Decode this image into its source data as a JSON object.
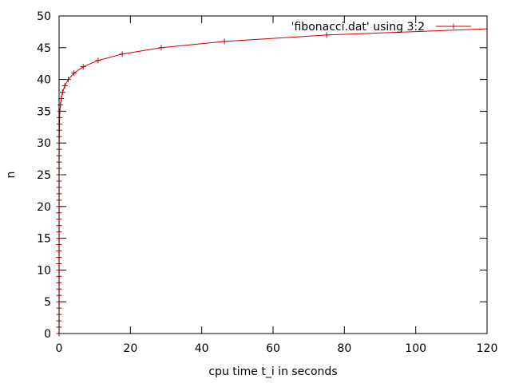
{
  "chart_data": {
    "type": "line",
    "title": "",
    "xlabel": "cpu time t_i in seconds",
    "ylabel": "n",
    "xlim": [
      0,
      120
    ],
    "ylim": [
      0,
      50
    ],
    "xticks": [
      0,
      20,
      40,
      60,
      80,
      100,
      120
    ],
    "yticks": [
      0,
      5,
      10,
      15,
      20,
      25,
      30,
      35,
      40,
      45,
      50
    ],
    "grid": false,
    "legend_position": "top-right",
    "series": [
      {
        "name": "'fibonacci.dat' using 3:2",
        "color": "#cc0000",
        "marker": "plus",
        "x": [
          0,
          0,
          0,
          0,
          0,
          0,
          0,
          0,
          0,
          0,
          0,
          0,
          0,
          0,
          0,
          0,
          0,
          0,
          0,
          0,
          0,
          0,
          0,
          0.001,
          0.001,
          0.002,
          0.003,
          0.005,
          0.008,
          0.013,
          0.021,
          0.034,
          0.055,
          0.089,
          0.144,
          0.233,
          0.377,
          0.61,
          0.987,
          1.597,
          2.584,
          4.181,
          6.765,
          10.946,
          17.711,
          28.657,
          46.368,
          75.025,
          121.393
        ],
        "y": [
          0,
          1,
          2,
          3,
          4,
          5,
          6,
          7,
          8,
          9,
          10,
          11,
          12,
          13,
          14,
          15,
          16,
          17,
          18,
          19,
          20,
          21,
          22,
          23,
          24,
          25,
          26,
          27,
          28,
          29,
          30,
          31,
          32,
          33,
          34,
          35,
          36,
          37,
          38,
          39,
          40,
          41,
          42,
          43,
          44,
          45,
          46,
          47,
          48
        ]
      }
    ]
  }
}
